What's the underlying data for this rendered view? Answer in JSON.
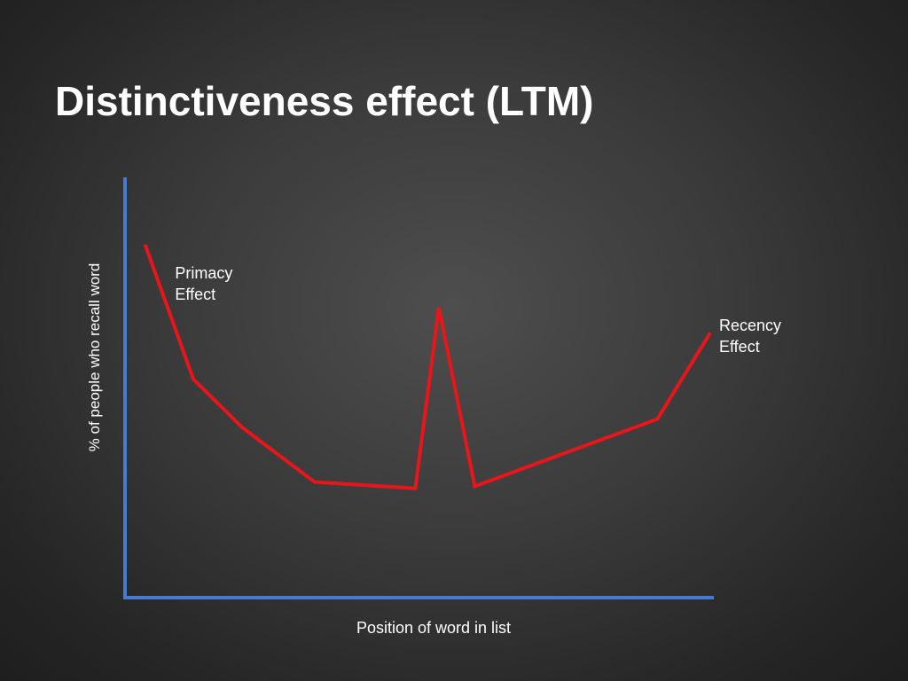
{
  "slide": {
    "title": "Distinctiveness effect (LTM)"
  },
  "chart_data": {
    "type": "line",
    "title": "Distinctiveness effect (LTM)",
    "xlabel": "Position of word in list",
    "ylabel": "% of people who recall word",
    "xlim": [
      0,
      100
    ],
    "ylim": [
      0,
      100
    ],
    "grid": false,
    "series": [
      {
        "color": "#e8151b",
        "points": [
          {
            "x": 3.4,
            "y": 84
          },
          {
            "x": 11.6,
            "y": 52
          },
          {
            "x": 19.9,
            "y": 40.5
          },
          {
            "x": 32.2,
            "y": 27.5
          },
          {
            "x": 49.3,
            "y": 26
          },
          {
            "x": 53.3,
            "y": 69
          },
          {
            "x": 59.4,
            "y": 26.5
          },
          {
            "x": 90.4,
            "y": 42.5
          },
          {
            "x": 99.4,
            "y": 63
          }
        ]
      }
    ],
    "annotations": [
      {
        "lines": [
          "Primacy",
          "Effect"
        ],
        "x": 8.5,
        "y": 76
      },
      {
        "lines": [
          "Recency",
          "Effect"
        ],
        "x": 100.9,
        "y": 63.5
      }
    ],
    "axis_color": "#4a78d4"
  }
}
